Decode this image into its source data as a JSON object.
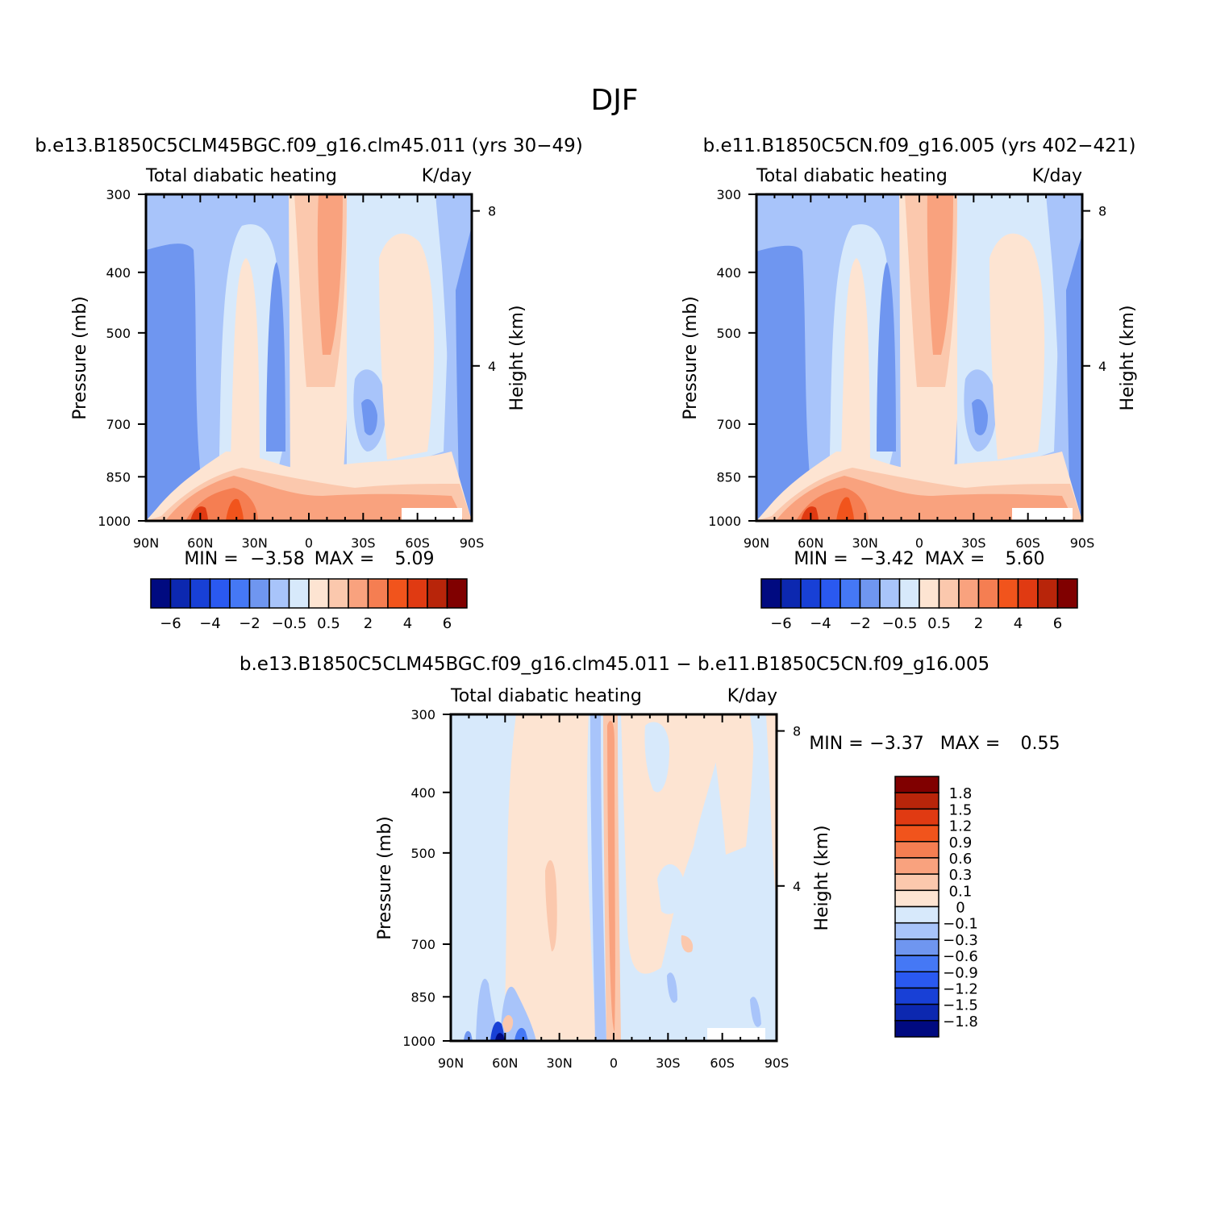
{
  "figure": {
    "title": "DJF"
  },
  "colors": {
    "diverging": [
      "#000a80",
      "#0c28b0",
      "#1840d6",
      "#2a59f0",
      "#4578f5",
      "#6f96f0",
      "#a8c4fa",
      "#d7e9fb",
      "#fde4d2",
      "#fbc8ad",
      "#f9a27e",
      "#f57e52",
      "#f1541c",
      "#e03a12",
      "#b8250a",
      "#800000"
    ]
  },
  "chart_data": [
    {
      "type": "heatmap",
      "id": "panel1",
      "case_title": "b.e13.B1850C5CLM45BGC.f09_g16.clm45.011 (yrs 30−49)",
      "left_subtitle": "Total diabatic heating",
      "right_subtitle": "K/day",
      "ylabel": "Pressure (mb)",
      "ylabel_right": "Height (km)",
      "x_ticks": [
        "90N",
        "60N",
        "30N",
        "0",
        "30S",
        "60S",
        "90S"
      ],
      "y_ticks": [
        "300",
        "400",
        "500",
        "700",
        "850",
        "1000"
      ],
      "y_ticks_right": [
        "8",
        "4"
      ],
      "xlim": [
        90,
        -90
      ],
      "ylim": [
        1000,
        300
      ],
      "stats": {
        "min_label": "MIN =",
        "min_value": "−3.58",
        "max_label": "MAX =",
        "max_value": "5.09"
      },
      "colorbar": {
        "orientation": "horizontal",
        "labels": [
          "−6",
          "−4",
          "−2",
          "−0.5",
          "0.5",
          "2",
          "4",
          "6"
        ]
      }
    },
    {
      "type": "heatmap",
      "id": "panel2",
      "case_title": "b.e11.B1850C5CN.f09_g16.005 (yrs 402−421)",
      "left_subtitle": "Total diabatic heating",
      "right_subtitle": "K/day",
      "ylabel": "Pressure (mb)",
      "ylabel_right": "Height (km)",
      "x_ticks": [
        "90N",
        "60N",
        "30N",
        "0",
        "30S",
        "60S",
        "90S"
      ],
      "y_ticks": [
        "300",
        "400",
        "500",
        "700",
        "850",
        "1000"
      ],
      "y_ticks_right": [
        "8",
        "4"
      ],
      "xlim": [
        90,
        -90
      ],
      "ylim": [
        1000,
        300
      ],
      "stats": {
        "min_label": "MIN =",
        "min_value": "−3.42",
        "max_label": "MAX =",
        "max_value": "5.60"
      },
      "colorbar": {
        "orientation": "horizontal",
        "labels": [
          "−6",
          "−4",
          "−2",
          "−0.5",
          "0.5",
          "2",
          "4",
          "6"
        ]
      }
    },
    {
      "type": "heatmap",
      "id": "panel3",
      "case_title": "b.e13.B1850C5CLM45BGC.f09_g16.clm45.011 − b.e11.B1850C5CN.f09_g16.005",
      "left_subtitle": "Total diabatic heating",
      "right_subtitle": "K/day",
      "ylabel": "Pressure (mb)",
      "ylabel_right": "Height (km)",
      "x_ticks": [
        "90N",
        "60N",
        "30N",
        "0",
        "30S",
        "60S",
        "90S"
      ],
      "y_ticks": [
        "300",
        "400",
        "500",
        "700",
        "850",
        "1000"
      ],
      "y_ticks_right": [
        "8",
        "4"
      ],
      "xlim": [
        90,
        -90
      ],
      "ylim": [
        1000,
        300
      ],
      "stats": {
        "min_label": "MIN =",
        "min_value": "−3.37",
        "max_label": "MAX =",
        "max_value": "0.55"
      },
      "colorbar": {
        "orientation": "vertical",
        "labels": [
          "1.8",
          "1.5",
          "1.2",
          "0.9",
          "0.6",
          "0.3",
          "0.1",
          "0",
          "−0.1",
          "−0.3",
          "−0.6",
          "−0.9",
          "−1.2",
          "−1.5",
          "−1.8"
        ],
        "colors": [
          "#800000",
          "#b8250a",
          "#e03a12",
          "#f1541c",
          "#f57e52",
          "#f9a27e",
          "#fbc8ad",
          "#fde4d2",
          "#d7e9fb",
          "#a8c4fa",
          "#6f96f0",
          "#4578f5",
          "#2a59f0",
          "#1840d6",
          "#0c28b0",
          "#000a80"
        ]
      }
    }
  ]
}
